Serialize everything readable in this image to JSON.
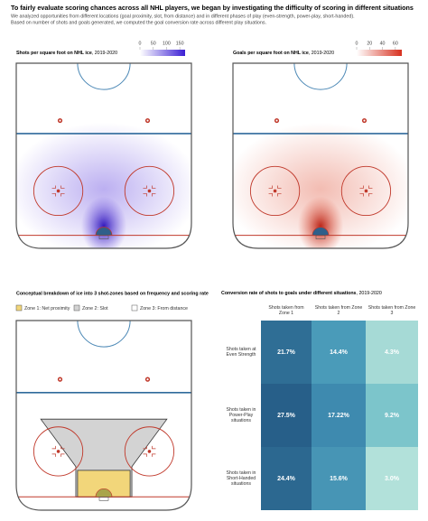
{
  "header": {
    "title": "To fairly evaluate scoring chances across all NHL players, we began by investigating the difficulty of scoring in different situations",
    "subtitle": [
      "We analyzed opportunities from different locations (goal proximity, slot, from distance) and in different phases of play (even-strength, power-play, short-handed).",
      "Based on number of shots and goals generated, we computed the goal conversion rate across different play situations."
    ]
  },
  "panels": [
    {
      "label": "Shots per square foot on NHL ice",
      "period": ", 2019-2020",
      "scale": {
        "lim": [
          0,
          170
        ],
        "ticks": [
          0,
          50,
          100,
          150
        ],
        "colors": [
          "#ffffff",
          "#3b1fd4"
        ]
      }
    },
    {
      "label": "Goals per square foot on NHL ice",
      "period": ", 2019-2020",
      "scale": {
        "lim": [
          0,
          70
        ],
        "ticks": [
          0,
          20,
          40,
          60
        ],
        "colors": [
          "#ffffff",
          "#d7301f"
        ]
      }
    }
  ],
  "zones": {
    "title": "Conceptual breakdown of ice into 3 shot-zones based on frequency and scoring rate",
    "legend": [
      {
        "label": "Zone 1: Net proximity",
        "color": "#f2d67a"
      },
      {
        "label": "Zone 2: Slot",
        "color": "#d3d3d3"
      },
      {
        "label": "Zone 3: From distance",
        "color": "#ffffff"
      }
    ]
  },
  "table": {
    "title": "Conversion rate of shots to goals under different situations",
    "period": ", 2019-2020",
    "columns": [
      "Shots taken from Zone 1",
      "Shots taken from Zone 2",
      "Shots taken from Zone 3"
    ],
    "rows": [
      {
        "label": "Shots taken at Even Strength",
        "cells": [
          "21.7%",
          "14.4%",
          "4.3%"
        ],
        "colors": [
          "#2f6e95",
          "#4a9bb9",
          "#a6dad6"
        ]
      },
      {
        "label": "Shots taken in Power-Play situations",
        "cells": [
          "27.5%",
          "17.22%",
          "9.2%"
        ],
        "colors": [
          "#275f89",
          "#3e8aaf",
          "#7cc5cb"
        ]
      },
      {
        "label": "Shots taken in Short-Handed situations",
        "cells": [
          "24.4%",
          "15.6%",
          "3.0%"
        ],
        "colors": [
          "#2c6890",
          "#4795b5",
          "#b2e1da"
        ]
      }
    ]
  }
}
